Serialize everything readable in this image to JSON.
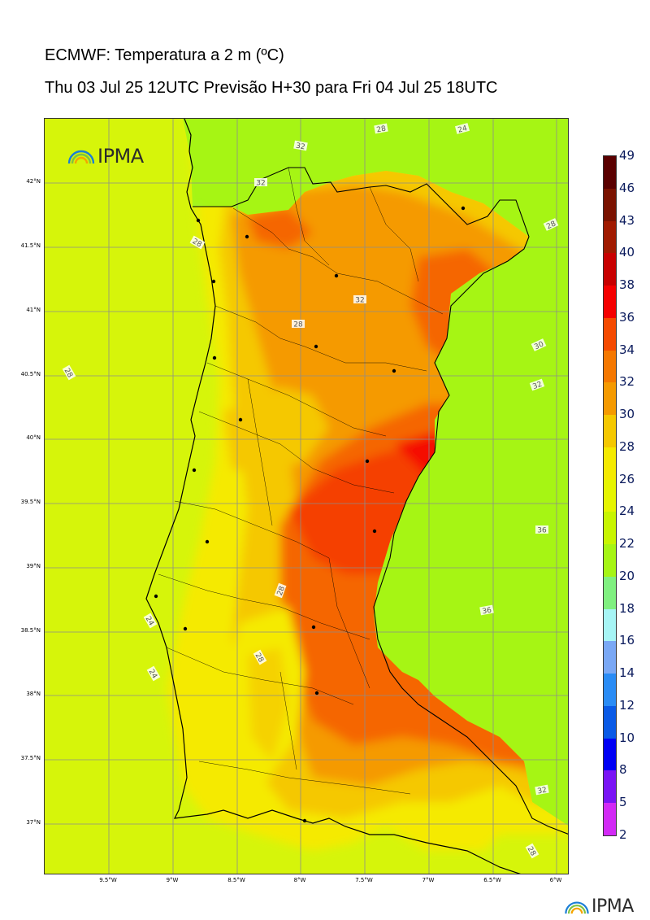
{
  "header": {
    "title": "ECMWF: Temperatura a 2 m (ºC)",
    "subtitle": "Thu 03 Jul 25 12UTC Previsão H+30 para Fri 04 Jul 25 18UTC"
  },
  "map": {
    "lat_labels": [
      "42°N",
      "41.5°N",
      "41°N",
      "40.5°N",
      "40°N",
      "39.5°N",
      "39°N",
      "38.5°N",
      "38°N",
      "37.5°N",
      "37°N"
    ],
    "lon_labels": [
      "9.5°W",
      "9°W",
      "8.5°W",
      "8°W",
      "7.5°W",
      "7°W",
      "6.5°W",
      "6°W"
    ],
    "contour_labels": [
      "28",
      "24",
      "32",
      "28",
      "28",
      "28",
      "32",
      "28",
      "30",
      "32",
      "36",
      "36",
      "24",
      "24",
      "28",
      "28",
      "32",
      "32",
      "28"
    ],
    "colors": {
      "sea_cool": "#8ef59a",
      "coast_cyan": "#a7f5f5",
      "lime": "#a6f514",
      "yellow_green": "#d6f50a",
      "yellow": "#f5ea00",
      "gold": "#f5c800",
      "orange": "#f59a00",
      "dark_orange": "#f56600",
      "red_orange": "#f54000",
      "red": "#f50a00",
      "border": "#000000",
      "grid": "#8c8c8c"
    }
  },
  "logo": {
    "text": "IPMA"
  },
  "colorbar": {
    "levels": [
      "49",
      "46",
      "43",
      "40",
      "38",
      "36",
      "34",
      "32",
      "30",
      "28",
      "26",
      "24",
      "22",
      "20",
      "18",
      "16",
      "14",
      "12",
      "10",
      "8",
      "5",
      "2"
    ],
    "colors": [
      "#5a0000",
      "#7a1200",
      "#a01a00",
      "#c80000",
      "#f50000",
      "#f54a00",
      "#f57800",
      "#f59a00",
      "#f5c800",
      "#f5ea00",
      "#e6f500",
      "#c8f500",
      "#a6f514",
      "#80f080",
      "#a7f5f5",
      "#7aa8f5",
      "#2a8cf5",
      "#0a5ae6",
      "#0000f5",
      "#7a14f5",
      "#d22af5"
    ]
  }
}
